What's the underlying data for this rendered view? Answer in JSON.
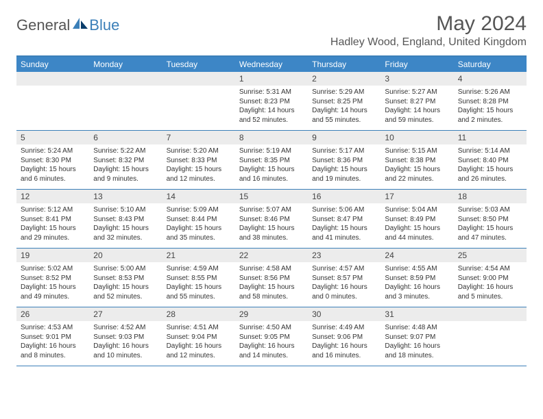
{
  "brand": {
    "word1": "General",
    "word2": "Blue"
  },
  "title": "May 2024",
  "location": "Hadley Wood, England, United Kingdom",
  "colors": {
    "header_bg": "#3d86c6",
    "border": "#3b7fb8",
    "daynum_bg": "#ececec",
    "text": "#333333",
    "title_text": "#555555"
  },
  "typography": {
    "title_fontsize": 30,
    "location_fontsize": 16,
    "header_fontsize": 12,
    "body_fontsize": 10
  },
  "weekday_headers": [
    "Sunday",
    "Monday",
    "Tuesday",
    "Wednesday",
    "Thursday",
    "Friday",
    "Saturday"
  ],
  "weeks": [
    [
      null,
      null,
      null,
      {
        "n": "1",
        "sunrise": "5:31 AM",
        "sunset": "8:23 PM",
        "daylight": "14 hours and 52 minutes."
      },
      {
        "n": "2",
        "sunrise": "5:29 AM",
        "sunset": "8:25 PM",
        "daylight": "14 hours and 55 minutes."
      },
      {
        "n": "3",
        "sunrise": "5:27 AM",
        "sunset": "8:27 PM",
        "daylight": "14 hours and 59 minutes."
      },
      {
        "n": "4",
        "sunrise": "5:26 AM",
        "sunset": "8:28 PM",
        "daylight": "15 hours and 2 minutes."
      }
    ],
    [
      {
        "n": "5",
        "sunrise": "5:24 AM",
        "sunset": "8:30 PM",
        "daylight": "15 hours and 6 minutes."
      },
      {
        "n": "6",
        "sunrise": "5:22 AM",
        "sunset": "8:32 PM",
        "daylight": "15 hours and 9 minutes."
      },
      {
        "n": "7",
        "sunrise": "5:20 AM",
        "sunset": "8:33 PM",
        "daylight": "15 hours and 12 minutes."
      },
      {
        "n": "8",
        "sunrise": "5:19 AM",
        "sunset": "8:35 PM",
        "daylight": "15 hours and 16 minutes."
      },
      {
        "n": "9",
        "sunrise": "5:17 AM",
        "sunset": "8:36 PM",
        "daylight": "15 hours and 19 minutes."
      },
      {
        "n": "10",
        "sunrise": "5:15 AM",
        "sunset": "8:38 PM",
        "daylight": "15 hours and 22 minutes."
      },
      {
        "n": "11",
        "sunrise": "5:14 AM",
        "sunset": "8:40 PM",
        "daylight": "15 hours and 26 minutes."
      }
    ],
    [
      {
        "n": "12",
        "sunrise": "5:12 AM",
        "sunset": "8:41 PM",
        "daylight": "15 hours and 29 minutes."
      },
      {
        "n": "13",
        "sunrise": "5:10 AM",
        "sunset": "8:43 PM",
        "daylight": "15 hours and 32 minutes."
      },
      {
        "n": "14",
        "sunrise": "5:09 AM",
        "sunset": "8:44 PM",
        "daylight": "15 hours and 35 minutes."
      },
      {
        "n": "15",
        "sunrise": "5:07 AM",
        "sunset": "8:46 PM",
        "daylight": "15 hours and 38 minutes."
      },
      {
        "n": "16",
        "sunrise": "5:06 AM",
        "sunset": "8:47 PM",
        "daylight": "15 hours and 41 minutes."
      },
      {
        "n": "17",
        "sunrise": "5:04 AM",
        "sunset": "8:49 PM",
        "daylight": "15 hours and 44 minutes."
      },
      {
        "n": "18",
        "sunrise": "5:03 AM",
        "sunset": "8:50 PM",
        "daylight": "15 hours and 47 minutes."
      }
    ],
    [
      {
        "n": "19",
        "sunrise": "5:02 AM",
        "sunset": "8:52 PM",
        "daylight": "15 hours and 49 minutes."
      },
      {
        "n": "20",
        "sunrise": "5:00 AM",
        "sunset": "8:53 PM",
        "daylight": "15 hours and 52 minutes."
      },
      {
        "n": "21",
        "sunrise": "4:59 AM",
        "sunset": "8:55 PM",
        "daylight": "15 hours and 55 minutes."
      },
      {
        "n": "22",
        "sunrise": "4:58 AM",
        "sunset": "8:56 PM",
        "daylight": "15 hours and 58 minutes."
      },
      {
        "n": "23",
        "sunrise": "4:57 AM",
        "sunset": "8:57 PM",
        "daylight": "16 hours and 0 minutes."
      },
      {
        "n": "24",
        "sunrise": "4:55 AM",
        "sunset": "8:59 PM",
        "daylight": "16 hours and 3 minutes."
      },
      {
        "n": "25",
        "sunrise": "4:54 AM",
        "sunset": "9:00 PM",
        "daylight": "16 hours and 5 minutes."
      }
    ],
    [
      {
        "n": "26",
        "sunrise": "4:53 AM",
        "sunset": "9:01 PM",
        "daylight": "16 hours and 8 minutes."
      },
      {
        "n": "27",
        "sunrise": "4:52 AM",
        "sunset": "9:03 PM",
        "daylight": "16 hours and 10 minutes."
      },
      {
        "n": "28",
        "sunrise": "4:51 AM",
        "sunset": "9:04 PM",
        "daylight": "16 hours and 12 minutes."
      },
      {
        "n": "29",
        "sunrise": "4:50 AM",
        "sunset": "9:05 PM",
        "daylight": "16 hours and 14 minutes."
      },
      {
        "n": "30",
        "sunrise": "4:49 AM",
        "sunset": "9:06 PM",
        "daylight": "16 hours and 16 minutes."
      },
      {
        "n": "31",
        "sunrise": "4:48 AM",
        "sunset": "9:07 PM",
        "daylight": "16 hours and 18 minutes."
      },
      null
    ]
  ],
  "labels": {
    "sunrise": "Sunrise:",
    "sunset": "Sunset:",
    "daylight": "Daylight:"
  }
}
